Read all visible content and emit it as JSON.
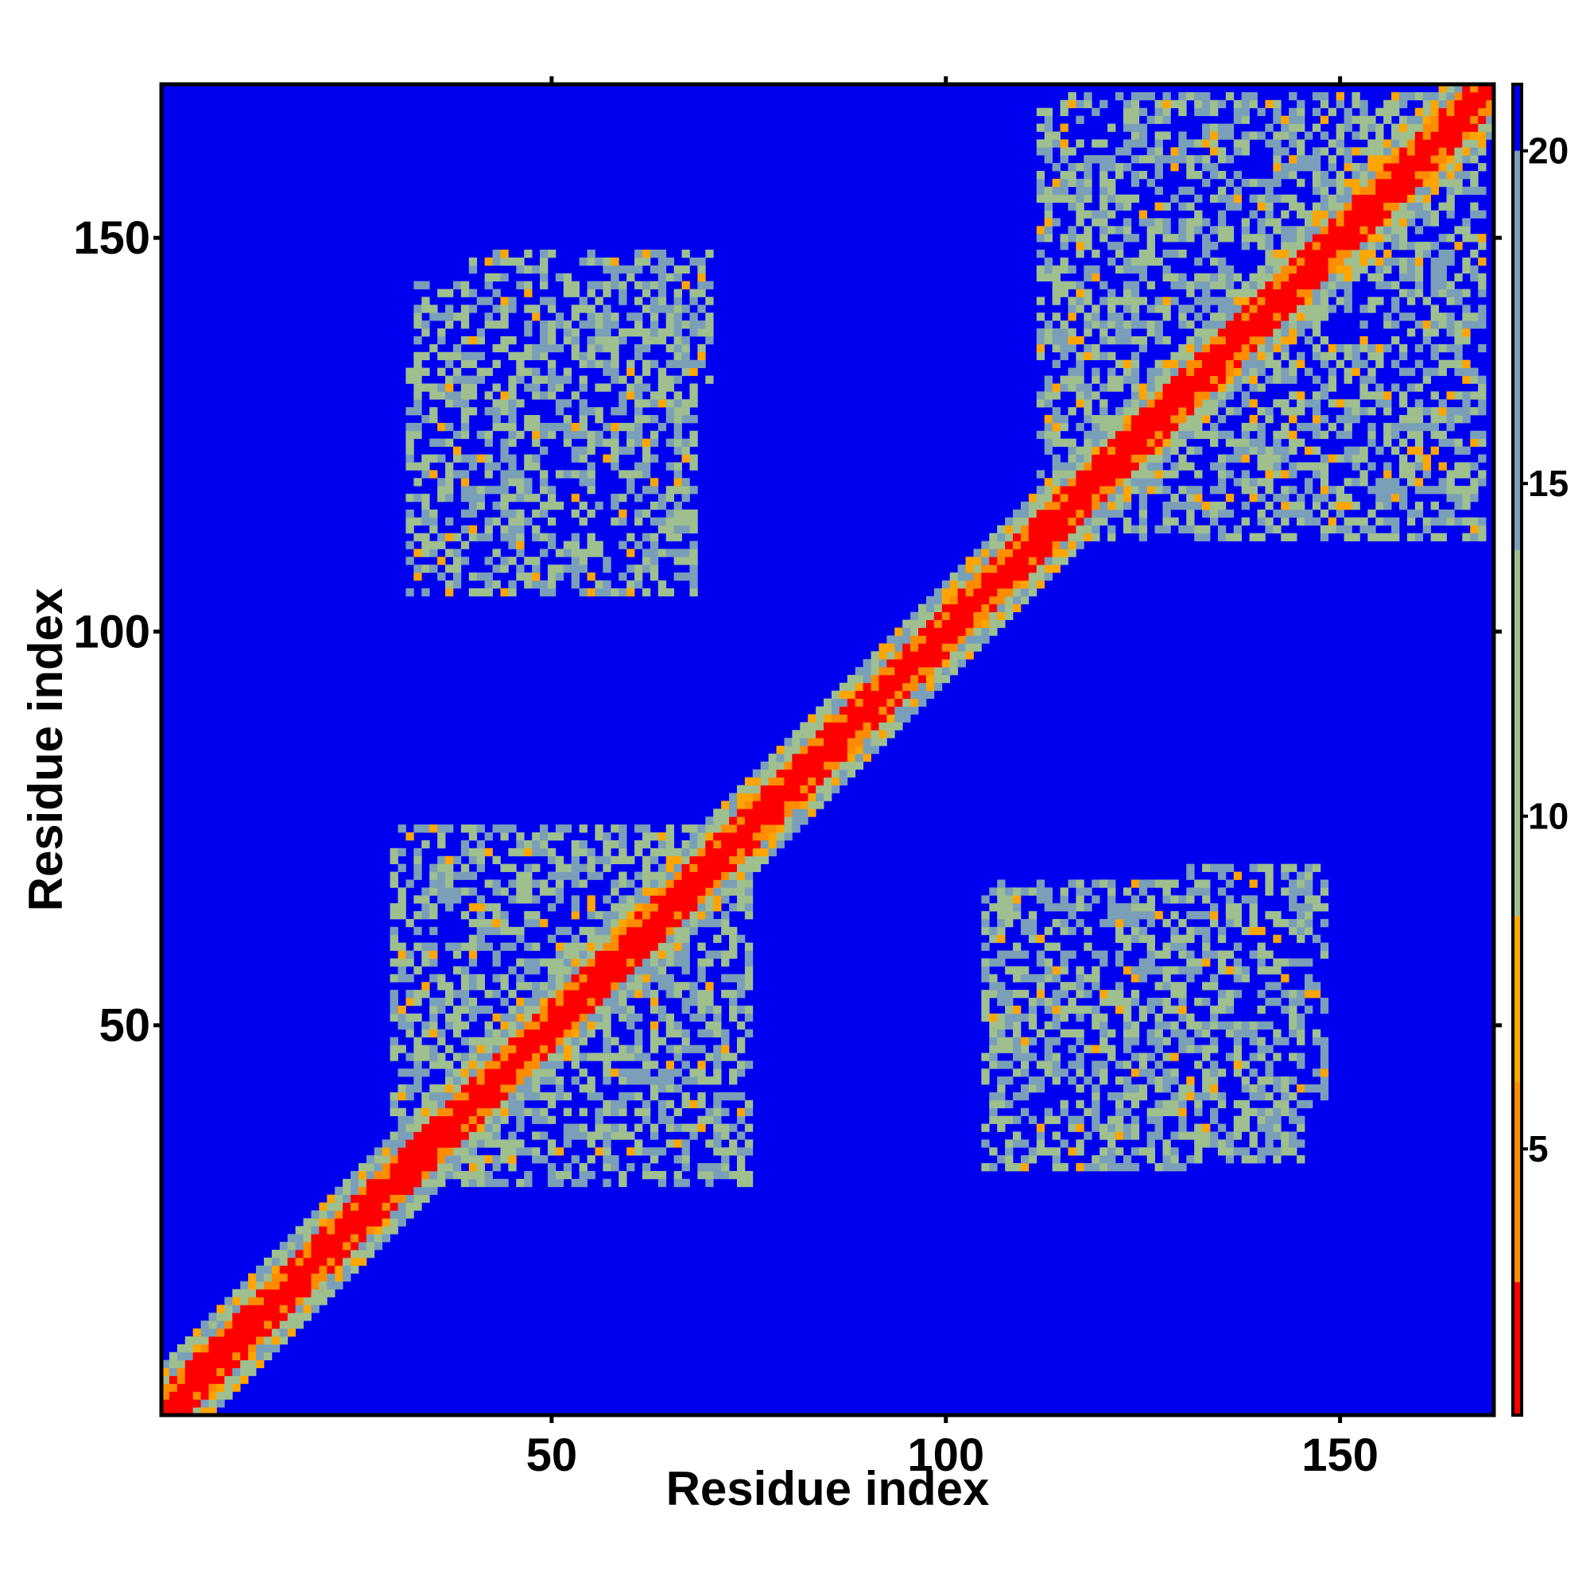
{
  "chart_data": {
    "type": "heatmap",
    "title": "",
    "xlabel": "Residue index",
    "ylabel": "Residue index",
    "n_residues": 169,
    "xlim": [
      1,
      169
    ],
    "ylim": [
      1,
      169
    ],
    "x_ticks": [
      50,
      100,
      150
    ],
    "y_ticks": [
      50,
      100,
      150
    ],
    "colorbar": {
      "ticks": [
        5,
        10,
        15,
        20
      ],
      "range": [
        1,
        21
      ],
      "placement": "right",
      "colors": [
        "#ff0000",
        "#ff8c00",
        "#ffa500",
        "#9fbf8f",
        "#7a9fb8",
        "#0000f0"
      ]
    },
    "background_value": 21,
    "background_color": "#0000f0",
    "diagonal": {
      "core_halfwidth": 1.2,
      "orange_halfwidth": 3.0,
      "green_halfwidth": 6.0
    },
    "regions": [
      {
        "name": "upper-right-domain-block",
        "x": [
          112,
          168
        ],
        "y": [
          112,
          168
        ],
        "value": 13
      },
      {
        "name": "upper-left-contact-patch",
        "x": [
          33,
          57
        ],
        "y": [
          105,
          145
        ],
        "value": 13
      },
      {
        "name": "upper-left-small-patch",
        "x": [
          40,
          70
        ],
        "y": [
          130,
          148
        ],
        "value": 13
      },
      {
        "name": "lower-right-patch-a",
        "x": [
          105,
          133
        ],
        "y": [
          32,
          68
        ],
        "value": 13
      },
      {
        "name": "lower-right-patch-b",
        "x": [
          141,
          146
        ],
        "y": [
          40,
          70
        ],
        "value": 13
      },
      {
        "name": "mid-cross-contacts",
        "x": [
          38,
          75
        ],
        "y": [
          30,
          72
        ],
        "value": 13
      }
    ]
  }
}
